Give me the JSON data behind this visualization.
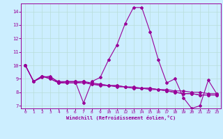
{
  "xlabel": "Windchill (Refroidissement éolien,°C)",
  "bg_color": "#cceeff",
  "grid_color": "#aaddcc",
  "line_color": "#990099",
  "xlim": [
    -0.5,
    23.5
  ],
  "ylim": [
    6.8,
    14.6
  ],
  "yticks": [
    7,
    8,
    9,
    10,
    11,
    12,
    13,
    14
  ],
  "xticks": [
    0,
    1,
    2,
    3,
    4,
    5,
    6,
    7,
    8,
    9,
    10,
    11,
    12,
    13,
    14,
    15,
    16,
    17,
    18,
    19,
    20,
    21,
    22,
    23
  ],
  "series": [
    [
      0,
      10.0
    ],
    [
      1,
      8.8
    ],
    [
      2,
      9.1
    ],
    [
      3,
      9.2
    ],
    [
      4,
      8.7
    ],
    [
      5,
      8.8
    ],
    [
      6,
      8.8
    ],
    [
      7,
      7.2
    ],
    [
      8,
      8.8
    ],
    [
      9,
      9.1
    ],
    [
      10,
      10.4
    ],
    [
      11,
      11.5
    ],
    [
      12,
      13.1
    ],
    [
      13,
      14.3
    ],
    [
      14,
      14.3
    ],
    [
      15,
      12.5
    ],
    [
      16,
      10.4
    ],
    [
      17,
      8.7
    ],
    [
      18,
      9.0
    ],
    [
      19,
      7.6
    ],
    [
      20,
      6.8
    ],
    [
      21,
      7.0
    ],
    [
      22,
      8.9
    ],
    [
      23,
      7.9
    ]
  ],
  "series2": [
    [
      0,
      10.0
    ],
    [
      1,
      8.8
    ],
    [
      2,
      9.2
    ],
    [
      3,
      9.1
    ],
    [
      4,
      8.8
    ],
    [
      5,
      8.8
    ],
    [
      6,
      8.8
    ],
    [
      7,
      8.8
    ],
    [
      8,
      8.6
    ],
    [
      9,
      8.6
    ],
    [
      10,
      8.5
    ],
    [
      11,
      8.5
    ],
    [
      12,
      8.4
    ],
    [
      13,
      8.4
    ],
    [
      14,
      8.3
    ],
    [
      15,
      8.3
    ],
    [
      16,
      8.2
    ],
    [
      17,
      8.2
    ],
    [
      18,
      8.1
    ],
    [
      19,
      8.1
    ],
    [
      20,
      8.0
    ],
    [
      21,
      8.0
    ],
    [
      22,
      7.9
    ],
    [
      23,
      7.9
    ]
  ],
  "series3": [
    [
      0,
      10.0
    ],
    [
      1,
      8.8
    ],
    [
      2,
      9.2
    ],
    [
      3,
      9.0
    ],
    [
      4,
      8.7
    ],
    [
      5,
      8.7
    ],
    [
      6,
      8.7
    ],
    [
      7,
      8.8
    ],
    [
      8,
      8.7
    ],
    [
      9,
      8.6
    ],
    [
      10,
      8.5
    ],
    [
      11,
      8.5
    ],
    [
      12,
      8.4
    ],
    [
      13,
      8.3
    ],
    [
      14,
      8.3
    ],
    [
      15,
      8.3
    ],
    [
      16,
      8.2
    ],
    [
      17,
      8.1
    ],
    [
      18,
      8.0
    ],
    [
      19,
      7.9
    ],
    [
      20,
      7.9
    ],
    [
      21,
      7.8
    ],
    [
      22,
      7.8
    ],
    [
      23,
      7.8
    ]
  ],
  "series4": [
    [
      0,
      10.0
    ],
    [
      1,
      8.8
    ],
    [
      2,
      9.2
    ],
    [
      3,
      9.0
    ],
    [
      4,
      8.7
    ],
    [
      5,
      8.7
    ],
    [
      6,
      8.7
    ],
    [
      7,
      8.7
    ],
    [
      8,
      8.6
    ],
    [
      9,
      8.5
    ],
    [
      10,
      8.5
    ],
    [
      11,
      8.4
    ],
    [
      12,
      8.4
    ],
    [
      13,
      8.3
    ],
    [
      14,
      8.3
    ],
    [
      15,
      8.2
    ],
    [
      16,
      8.2
    ],
    [
      17,
      8.1
    ],
    [
      18,
      8.0
    ],
    [
      19,
      7.9
    ],
    [
      20,
      7.9
    ],
    [
      21,
      7.8
    ],
    [
      22,
      7.8
    ],
    [
      23,
      7.8
    ]
  ]
}
